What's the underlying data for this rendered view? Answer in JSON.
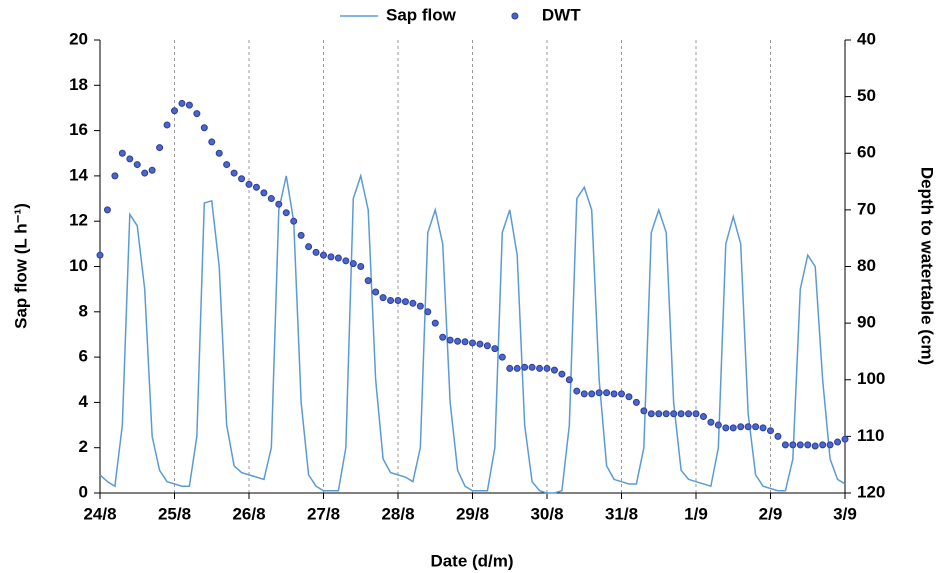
{
  "chart_data": {
    "type": "line",
    "x_label": "Date (d/m)",
    "y_label": "Sap flow (L h⁻¹)",
    "y2_label": "Depth to watertable (cm)",
    "x": [
      0,
      0.1,
      0.2,
      0.3,
      0.4,
      0.5,
      0.6,
      0.7,
      0.8,
      0.9,
      1,
      1.1,
      1.2,
      1.3,
      1.4,
      1.5,
      1.6,
      1.7,
      1.8,
      1.9,
      2,
      2.1,
      2.2,
      2.3,
      2.4,
      2.5,
      2.6,
      2.7,
      2.8,
      2.9,
      3,
      3.1,
      3.2,
      3.3,
      3.4,
      3.5,
      3.6,
      3.7,
      3.8,
      3.9,
      4,
      4.1,
      4.2,
      4.3,
      4.4,
      4.5,
      4.6,
      4.7,
      4.8,
      4.9,
      5,
      5.1,
      5.2,
      5.3,
      5.4,
      5.5,
      5.6,
      5.7,
      5.8,
      5.9,
      6,
      6.1,
      6.2,
      6.3,
      6.4,
      6.5,
      6.6,
      6.7,
      6.8,
      6.9,
      7,
      7.1,
      7.2,
      7.3,
      7.4,
      7.5,
      7.6,
      7.7,
      7.8,
      7.9,
      8,
      8.1,
      8.2,
      8.3,
      8.4,
      8.5,
      8.6,
      8.7,
      8.8,
      8.9,
      9,
      9.1,
      9.2,
      9.3,
      9.4,
      9.5,
      9.6,
      9.7,
      9.8,
      9.9,
      10
    ],
    "xlim": [
      0,
      10
    ],
    "xticks": [
      {
        "value": 0,
        "label": "24/8"
      },
      {
        "value": 1,
        "label": "25/8"
      },
      {
        "value": 2,
        "label": "26/8"
      },
      {
        "value": 3,
        "label": "27/8"
      },
      {
        "value": 4,
        "label": "28/8"
      },
      {
        "value": 5,
        "label": "29/8"
      },
      {
        "value": 6,
        "label": "30/8"
      },
      {
        "value": 7,
        "label": "31/8"
      },
      {
        "value": 8,
        "label": "1/9"
      },
      {
        "value": 9,
        "label": "2/9"
      },
      {
        "value": 10,
        "label": "3/9"
      }
    ],
    "ylim": [
      0,
      20
    ],
    "yticks": [
      0,
      2,
      4,
      6,
      8,
      10,
      12,
      14,
      16,
      18,
      20
    ],
    "y2lim": [
      120,
      40
    ],
    "y2ticks": [
      40,
      50,
      60,
      70,
      80,
      90,
      100,
      110,
      120
    ],
    "xgrid": true,
    "legend": "top",
    "series": [
      {
        "name": "Sap flow",
        "type": "line",
        "color": "#5b9bd5",
        "values": [
          0.8,
          0.5,
          0.3,
          3,
          12.3,
          11.8,
          9,
          2.5,
          1.0,
          0.5,
          0.4,
          0.3,
          0.3,
          2.5,
          12.8,
          12.9,
          10,
          3,
          1.2,
          0.9,
          0.8,
          0.7,
          0.6,
          2,
          12.5,
          14.0,
          12,
          4,
          0.8,
          0.3,
          0.1,
          0.1,
          0.1,
          2,
          13,
          14.0,
          12.5,
          5,
          1.5,
          0.9,
          0.8,
          0.7,
          0.5,
          2,
          11.5,
          12.5,
          11,
          4,
          1,
          0.3,
          0.1,
          0.1,
          0.1,
          2,
          11.5,
          12.5,
          10.5,
          3,
          0.5,
          0.1,
          0,
          0,
          0.1,
          3,
          13,
          13.5,
          12.5,
          5,
          1.2,
          0.6,
          0.5,
          0.4,
          0.4,
          2,
          11.5,
          12.5,
          11.5,
          4,
          1,
          0.6,
          0.5,
          0.4,
          0.3,
          2,
          11,
          12.2,
          11,
          3.5,
          0.8,
          0.3,
          0.2,
          0.1,
          0.1,
          1.5,
          9,
          10.5,
          10,
          5,
          1.5,
          0.6,
          0.4
        ]
      },
      {
        "name": "DWT",
        "type": "scatter",
        "axis": "y2",
        "color": "#2b3d9c",
        "values": [
          78,
          70,
          64,
          60,
          61,
          62,
          63.5,
          63,
          59,
          55,
          52.5,
          51.2,
          51.5,
          53,
          55.5,
          58,
          60,
          62,
          63.5,
          64.5,
          65.5,
          66,
          67,
          68,
          69,
          70.5,
          72,
          74.5,
          76.5,
          77.5,
          78,
          78.3,
          78.5,
          79,
          79.5,
          80,
          82.5,
          84.5,
          85.5,
          86,
          86,
          86.2,
          86.5,
          87,
          88,
          90,
          92.5,
          93,
          93.2,
          93.3,
          93.5,
          93.7,
          94,
          94.5,
          96,
          98,
          98,
          97.8,
          97.8,
          98,
          98,
          98.3,
          99,
          100,
          102,
          102.5,
          102.5,
          102.3,
          102.3,
          102.5,
          102.5,
          103,
          104,
          105.5,
          106,
          106,
          106,
          106,
          106,
          106,
          106,
          106.5,
          107.5,
          108,
          108.5,
          108.5,
          108.3,
          108.3,
          108.3,
          108.5,
          109,
          110,
          111.5,
          111.5,
          111.5,
          111.5,
          111.7,
          111.5,
          111.5,
          111.0,
          110.5
        ]
      }
    ]
  }
}
